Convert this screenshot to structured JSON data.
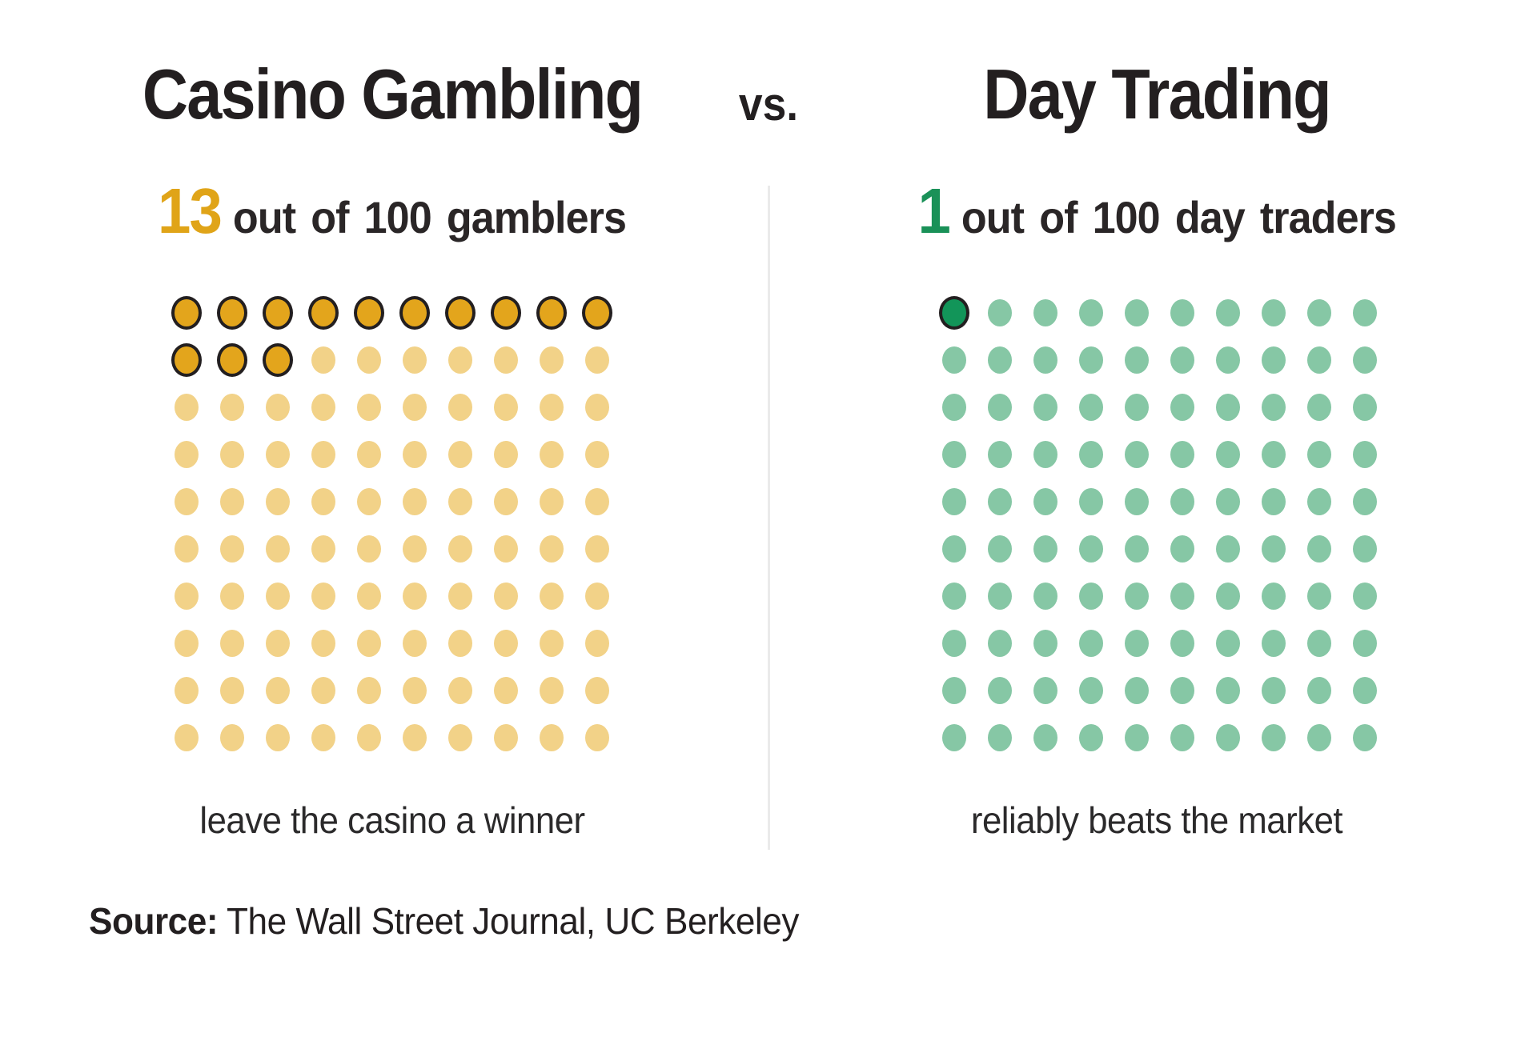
{
  "page": {
    "background_color": "#ffffff",
    "divider_color": "#eaeaea",
    "text_color": "#231f20"
  },
  "header": {
    "left_title": "Casino Gambling",
    "vs_label": "vs.",
    "right_title": "Day Trading"
  },
  "chart_data": {
    "type": "waffle",
    "description": "Two 10x10 dot pictogram grids comparing success rates, filled row-major from top-left",
    "charts": [
      {
        "title": "Casino Gambling",
        "stat_number": "13",
        "stat_text": "out of 100 gamblers",
        "caption": "leave the casino a winner",
        "highlighted_count": 13,
        "total_dots": 100,
        "rows": 10,
        "cols": 10,
        "number_color": "#e0a418",
        "highlight_fill": "#e3a51c",
        "base_fill": "#f2d288",
        "outline_color": "#231f20"
      },
      {
        "title": "Day Trading",
        "stat_number": "1",
        "stat_text": "out of 100 day traders",
        "caption": "reliably beats the market",
        "highlighted_count": 1,
        "total_dots": 100,
        "rows": 10,
        "cols": 10,
        "number_color": "#1a9158",
        "highlight_fill": "#129559",
        "base_fill": "#86c7a5",
        "outline_color": "#231f20"
      }
    ],
    "legend_position": "none",
    "grid_lines": false
  },
  "footer": {
    "source_label": "Source:",
    "source_text": " The Wall Street Journal, UC Berkeley"
  }
}
